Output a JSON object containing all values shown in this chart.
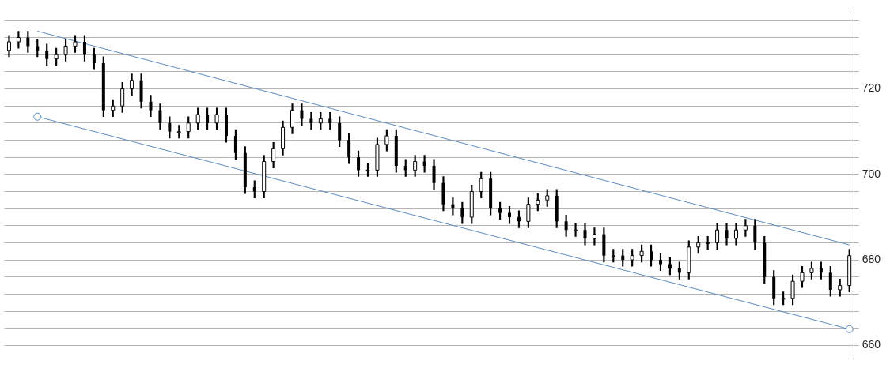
{
  "chart_data": {
    "type": "candlestick",
    "categories": [
      null,
      null,
      null,
      null,
      null,
      null,
      null,
      null,
      null,
      null,
      null,
      null,
      null,
      null,
      null,
      null,
      null,
      null,
      null,
      null,
      null,
      null,
      null,
      null,
      null,
      null,
      null,
      null,
      null,
      null,
      null,
      null,
      null,
      null,
      null,
      null,
      null,
      null,
      null,
      null,
      null,
      null,
      null,
      null,
      null,
      null,
      null,
      null,
      null,
      null,
      null,
      null,
      null,
      null,
      null,
      null,
      null,
      null,
      null,
      null,
      null,
      null,
      null,
      null,
      null,
      null,
      null,
      null,
      null,
      null,
      null,
      null,
      null,
      null,
      null,
      null,
      null,
      null,
      null,
      null,
      null,
      null,
      null,
      null,
      null,
      null,
      null,
      null,
      null,
      null
    ],
    "ohlc": [
      [
        729,
        732.5,
        727.5,
        731
      ],
      [
        731,
        733.5,
        729.5,
        732
      ],
      [
        732,
        733.5,
        728.5,
        730
      ],
      [
        730,
        731.5,
        727.5,
        729
      ],
      [
        729,
        730.5,
        725.5,
        727
      ],
      [
        727,
        729.5,
        725.5,
        728
      ],
      [
        728,
        731.5,
        726.5,
        730
      ],
      [
        730,
        732.5,
        728.5,
        731
      ],
      [
        731,
        732.5,
        726.5,
        728
      ],
      [
        728,
        729.5,
        724.5,
        726
      ],
      [
        726,
        727.5,
        713.5,
        715
      ],
      [
        715,
        717.5,
        713.5,
        716
      ],
      [
        716,
        721.5,
        714.5,
        720
      ],
      [
        720,
        723.5,
        718.5,
        722
      ],
      [
        722,
        723.5,
        715.5,
        717
      ],
      [
        717,
        718.5,
        713.5,
        715
      ],
      [
        715,
        716.5,
        710.5,
        712
      ],
      [
        712,
        713.5,
        708.5,
        710
      ],
      [
        710,
        711.5,
        708.5,
        710
      ],
      [
        710,
        713.5,
        708.5,
        712
      ],
      [
        712,
        715.5,
        710.5,
        714
      ],
      [
        714,
        715.5,
        710.5,
        712
      ],
      [
        712,
        715.5,
        710.5,
        714
      ],
      [
        714,
        715.5,
        707.5,
        709
      ],
      [
        709,
        710.5,
        703.5,
        705
      ],
      [
        705,
        706.5,
        695.5,
        697
      ],
      [
        697,
        698.5,
        694.5,
        696
      ],
      [
        696,
        704.5,
        694.5,
        703
      ],
      [
        703,
        707.5,
        701.5,
        706
      ],
      [
        706,
        712.5,
        704.5,
        711
      ],
      [
        711,
        716.5,
        709.5,
        715
      ],
      [
        715,
        716.5,
        711.5,
        713
      ],
      [
        713,
        714.5,
        710.5,
        712
      ],
      [
        712,
        714.5,
        710.5,
        713
      ],
      [
        713,
        714.5,
        710.5,
        712
      ],
      [
        712,
        713.5,
        706.5,
        708
      ],
      [
        708,
        709.5,
        702.5,
        704
      ],
      [
        704,
        705.5,
        699.5,
        701
      ],
      [
        701,
        702.5,
        699.5,
        701
      ],
      [
        701,
        708.5,
        699.5,
        707
      ],
      [
        707,
        710.5,
        705.5,
        709
      ],
      [
        709,
        710.5,
        700.5,
        702
      ],
      [
        702,
        703.5,
        699.5,
        701
      ],
      [
        701,
        704.5,
        699.5,
        703
      ],
      [
        703,
        704.5,
        700.5,
        702
      ],
      [
        702,
        703.5,
        696.5,
        698
      ],
      [
        698,
        699.5,
        691.5,
        693
      ],
      [
        693,
        694.5,
        690.5,
        692
      ],
      [
        692,
        693.5,
        688.5,
        690
      ],
      [
        690,
        697.5,
        688.5,
        696
      ],
      [
        696,
        700.5,
        694.5,
        699
      ],
      [
        699,
        700.5,
        690.5,
        692
      ],
      [
        692,
        693.5,
        689.5,
        691
      ],
      [
        691,
        692.5,
        688.5,
        690
      ],
      [
        690,
        691.5,
        687.5,
        689
      ],
      [
        689,
        694.5,
        687.5,
        693
      ],
      [
        693,
        695.5,
        691.5,
        694
      ],
      [
        694,
        696.5,
        692.5,
        695
      ],
      [
        695,
        696.5,
        687.5,
        689
      ],
      [
        689,
        690.5,
        685.5,
        687
      ],
      [
        687,
        688.5,
        685.5,
        687
      ],
      [
        687,
        688.5,
        683.5,
        685
      ],
      [
        685,
        687.5,
        683.5,
        686
      ],
      [
        686,
        687.5,
        679.5,
        681
      ],
      [
        681,
        682.5,
        679.5,
        681
      ],
      [
        681,
        682.5,
        678.5,
        680
      ],
      [
        680,
        682.5,
        678.5,
        681
      ],
      [
        681,
        683.5,
        679.5,
        682
      ],
      [
        682,
        683.5,
        678.5,
        680
      ],
      [
        680,
        681.5,
        677.5,
        679
      ],
      [
        679,
        680.5,
        676.5,
        678
      ],
      [
        678,
        679.5,
        675.5,
        677
      ],
      [
        677,
        684.5,
        675.5,
        683
      ],
      [
        683,
        685.5,
        681.5,
        684
      ],
      [
        684,
        685.5,
        682.5,
        684
      ],
      [
        684,
        688.5,
        682.5,
        687
      ],
      [
        687,
        688.5,
        683.5,
        685
      ],
      [
        685,
        688.5,
        683.5,
        687
      ],
      [
        687,
        689.5,
        685.5,
        688
      ],
      [
        688,
        689.5,
        682.5,
        684
      ],
      [
        684,
        685.5,
        674.5,
        676
      ],
      [
        676,
        677.5,
        669.5,
        671
      ],
      [
        671,
        672.5,
        669.5,
        671
      ],
      [
        671,
        676.5,
        669.5,
        675
      ],
      [
        675,
        678.5,
        673.5,
        677
      ],
      [
        677,
        679.5,
        675.5,
        678
      ],
      [
        678,
        679.5,
        675.5,
        677
      ],
      [
        677,
        678.5,
        671.5,
        673
      ],
      [
        673,
        675.5,
        671.5,
        674
      ],
      [
        674,
        682.5,
        672.5,
        681
      ]
    ],
    "series": [
      {
        "type": "line",
        "color": "#5b8cc0",
        "marker": "none",
        "values": [
          null,
          null,
          null,
          733.5,
          null,
          null,
          null,
          null,
          null,
          null,
          null,
          null,
          null,
          null,
          null,
          null,
          null,
          null,
          null,
          null,
          null,
          null,
          null,
          null,
          null,
          null,
          null,
          null,
          null,
          null,
          null,
          null,
          null,
          null,
          null,
          null,
          null,
          null,
          null,
          null,
          null,
          null,
          null,
          null,
          null,
          null,
          null,
          null,
          null,
          null,
          null,
          null,
          null,
          null,
          null,
          null,
          null,
          null,
          null,
          null,
          null,
          null,
          null,
          null,
          null,
          null,
          null,
          null,
          null,
          null,
          null,
          null,
          null,
          null,
          null,
          null,
          null,
          null,
          null,
          null,
          null,
          null,
          null,
          null,
          null,
          null,
          null,
          null,
          null,
          683.5
        ]
      },
      {
        "type": "line",
        "color": "#5b8cc0",
        "marker": "circle",
        "values": [
          null,
          null,
          null,
          713.5,
          null,
          null,
          null,
          null,
          null,
          null,
          null,
          null,
          null,
          null,
          null,
          null,
          null,
          null,
          null,
          null,
          null,
          null,
          null,
          null,
          null,
          null,
          null,
          null,
          null,
          null,
          null,
          null,
          null,
          null,
          null,
          null,
          null,
          null,
          null,
          null,
          null,
          null,
          null,
          null,
          null,
          null,
          null,
          null,
          null,
          null,
          null,
          null,
          null,
          null,
          null,
          null,
          null,
          null,
          null,
          null,
          null,
          null,
          null,
          null,
          null,
          null,
          null,
          null,
          null,
          null,
          null,
          null,
          null,
          null,
          null,
          null,
          null,
          null,
          null,
          null,
          null,
          null,
          null,
          null,
          null,
          null,
          null,
          null,
          null,
          663.8
        ]
      }
    ],
    "ylim": [
      657,
      738.5
    ],
    "yticks": [
      660,
      {
        "value": 664,
        "label": null
      },
      {
        "value": 668,
        "label": null
      },
      {
        "value": 672,
        "label": null
      },
      {
        "value": 676,
        "label": null
      },
      680,
      {
        "value": 684,
        "label": null
      },
      {
        "value": 688,
        "label": null
      },
      {
        "value": 692,
        "label": null
      },
      {
        "value": 696,
        "label": null
      },
      700,
      {
        "value": 704,
        "label": null
      },
      {
        "value": 708,
        "label": null
      },
      {
        "value": 712,
        "label": null
      },
      {
        "value": 716,
        "label": null
      },
      720,
      {
        "value": 724,
        "label": null
      },
      {
        "value": 728,
        "label": null
      },
      {
        "value": 732,
        "label": null
      },
      {
        "value": 736,
        "label": null
      }
    ],
    "grid": "y",
    "tick_labels": "y"
  }
}
